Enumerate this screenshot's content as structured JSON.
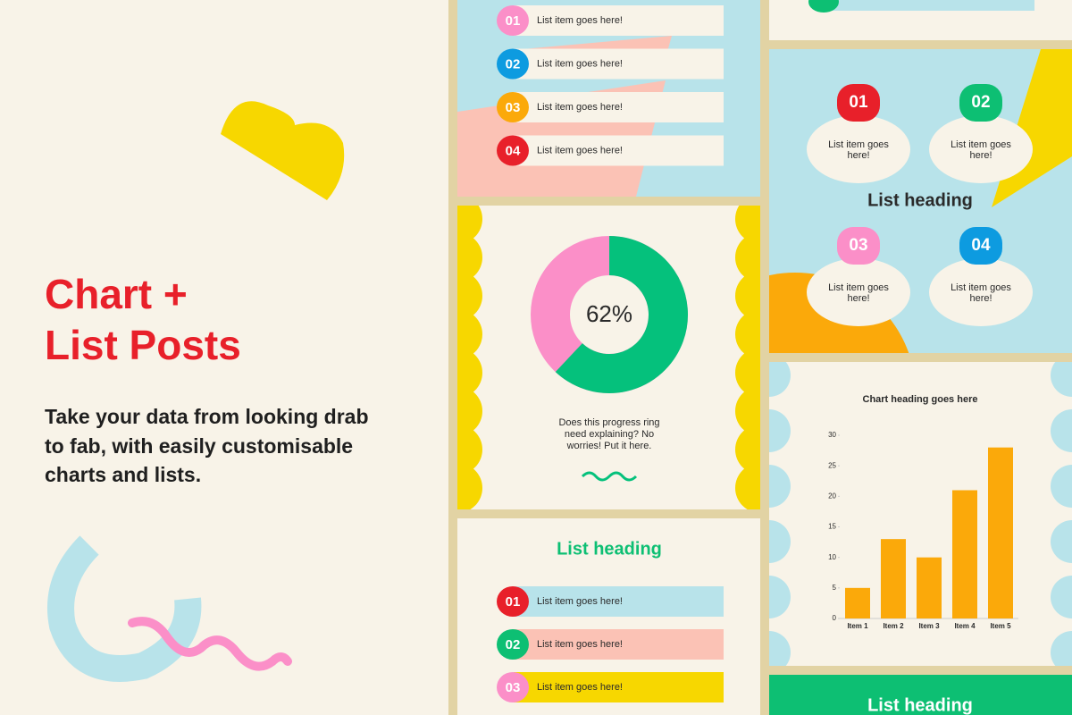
{
  "headline": {
    "lines": [
      "Chart +",
      "List Posts"
    ]
  },
  "description": {
    "lines": [
      "Take your data from looking drab",
      "to fab, with easily customisable",
      "charts and lists."
    ]
  },
  "list_post_1": {
    "items": [
      {
        "number": "01",
        "text": "List item goes here!",
        "color": "#fb8fc8"
      },
      {
        "number": "02",
        "text": "List item goes here!",
        "color": "#0d9be0"
      },
      {
        "number": "03",
        "text": "List item goes here!",
        "color": "#fba90a"
      },
      {
        "number": "04",
        "text": "List item goes here!",
        "color": "#e8202a"
      }
    ]
  },
  "list_post_2": {
    "heading": "List heading",
    "items": [
      {
        "number": "01",
        "text": "List item goes here!",
        "color": "#e8202a",
        "bar_color": "#b8e3ea"
      },
      {
        "number": "02",
        "text": "List item goes here!",
        "color": "#0dbf73",
        "bar_color": "#fbc2b5"
      },
      {
        "number": "03",
        "text": "List item goes here!",
        "color": "#fb8fc8",
        "bar_color": "#f7d700"
      }
    ]
  },
  "list_post_3": {
    "heading": "List heading",
    "items": [
      {
        "number": "01",
        "lines": [
          "List item goes",
          "here!"
        ],
        "color": "#e8202a"
      },
      {
        "number": "02",
        "lines": [
          "List item goes",
          "here!"
        ],
        "color": "#0dbf73"
      },
      {
        "number": "03",
        "lines": [
          "List item goes",
          "here!"
        ],
        "color": "#fb8fc8"
      },
      {
        "number": "04",
        "lines": [
          "List item goes",
          "here!"
        ],
        "color": "#0d9be0"
      }
    ]
  },
  "list_post_4": {
    "heading": "List heading"
  },
  "chart_data": [
    {
      "type": "donut",
      "values": [
        62
      ],
      "value_labels": [
        "62%"
      ],
      "ylim": [
        0,
        100
      ],
      "color": "#05c17c",
      "track_color": "#fb8fc8",
      "caption": [
        "Does this progress ring",
        "need explaining? No",
        "worries! Put it here."
      ]
    },
    {
      "type": "bar",
      "title": "Chart heading goes here",
      "categories": [
        "Item 1",
        "Item 2",
        "Item 3",
        "Item 4",
        "Item 5"
      ],
      "values": [
        5,
        13,
        10,
        21,
        28
      ],
      "color": "#fba90a",
      "ylim": [
        0,
        30
      ],
      "yticks": [
        0,
        5,
        10,
        15,
        20,
        25,
        30
      ]
    }
  ]
}
